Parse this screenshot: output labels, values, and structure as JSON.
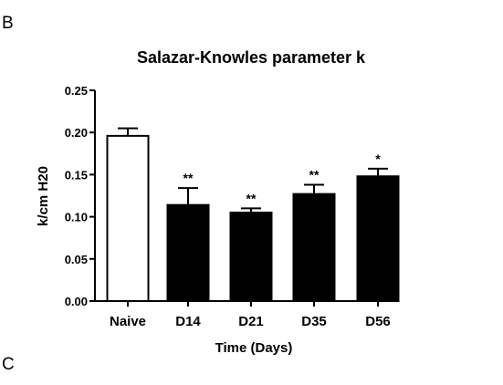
{
  "panels": {
    "top_letter": "B",
    "bottom_letter": "C"
  },
  "chart_data": {
    "type": "bar",
    "title": "Salazar-Knowles parameter k",
    "xlabel": "Time (Days)",
    "ylabel": "k/cm H20",
    "ylim": [
      0,
      0.25
    ],
    "yticks": [
      "0.00",
      "0.05",
      "0.10",
      "0.15",
      "0.20",
      "0.25"
    ],
    "categories": [
      "Naive",
      "D14",
      "D21",
      "D35",
      "D56"
    ],
    "values": [
      0.196,
      0.114,
      0.105,
      0.127,
      0.148
    ],
    "errors": [
      0.009,
      0.02,
      0.005,
      0.011,
      0.009
    ],
    "significance": [
      "",
      "**",
      "**",
      "**",
      "*"
    ],
    "fill_colors": [
      "#ffffff",
      "#000000",
      "#000000",
      "#000000",
      "#000000"
    ],
    "grid": false,
    "legend": "none"
  }
}
